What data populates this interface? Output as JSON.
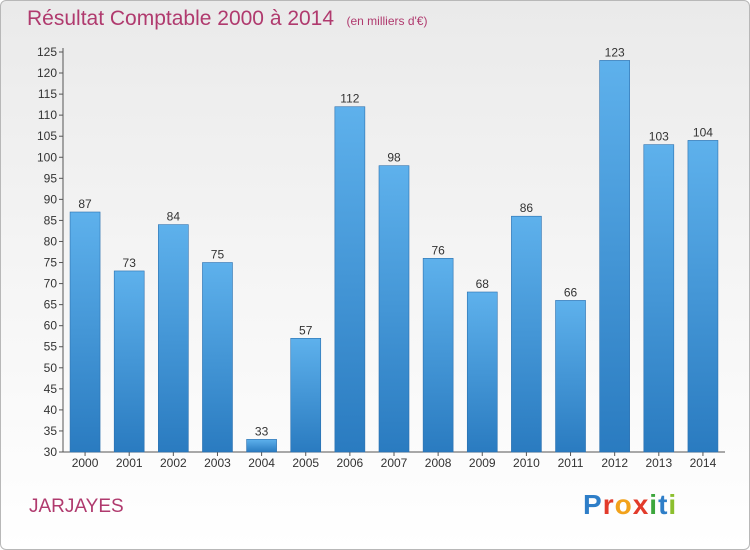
{
  "header": {
    "title": "Résultat Comptable 2000 à 2014",
    "subtitle": "(en milliers d'€)"
  },
  "footer": {
    "place": "JARJAYES",
    "logo_letters": [
      "P",
      "r",
      "o",
      "x",
      "i",
      "t",
      "i"
    ],
    "logo_colors": [
      "#2e7ec8",
      "#e23b2b",
      "#f2a21b",
      "#e23b2b",
      "#3da63d",
      "#2e7ec8",
      "#8cbf2e"
    ]
  },
  "chart_data": {
    "type": "bar",
    "title": "Résultat Comptable 2000 à 2014",
    "subtitle": "(en milliers d'€)",
    "categories": [
      "2000",
      "2001",
      "2002",
      "2003",
      "2004",
      "2005",
      "2006",
      "2007",
      "2008",
      "2009",
      "2010",
      "2011",
      "2012",
      "2013",
      "2014"
    ],
    "values": [
      87,
      73,
      84,
      75,
      33,
      57,
      112,
      98,
      76,
      68,
      86,
      66,
      123,
      103,
      104
    ],
    "ylim": [
      30,
      125
    ],
    "ytick_step": 5,
    "grid": false,
    "bar_color_top": "#5eb1ec",
    "bar_color_bottom": "#2a7bc0"
  }
}
